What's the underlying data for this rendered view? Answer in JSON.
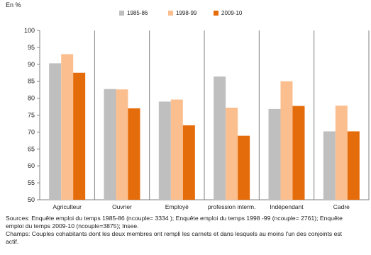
{
  "chart_data": {
    "type": "bar",
    "unit_label": "En %",
    "categories": [
      "Agriculteur",
      "Ouvrier",
      "Employé",
      "profession interm.",
      "Indépendant",
      "Cadre"
    ],
    "series": [
      {
        "name": "1985-86",
        "color": "#bfbfbf",
        "values": [
          90.3,
          82.7,
          79.0,
          86.4,
          76.8,
          70.2
        ]
      },
      {
        "name": "1998-99",
        "color": "#fbbf8f",
        "values": [
          93.0,
          82.6,
          79.6,
          77.2,
          85.0,
          77.8
        ]
      },
      {
        "name": "2009-10",
        "color": "#e46c0a",
        "values": [
          87.5,
          77.0,
          72.0,
          68.9,
          77.7,
          70.2
        ]
      }
    ],
    "ylim": [
      50,
      100
    ],
    "yticks": [
      50,
      55,
      60,
      65,
      70,
      75,
      80,
      85,
      90,
      95,
      100
    ],
    "grid": false,
    "legend_position": "top-center"
  },
  "notes": {
    "sources_line1": "Sources: Enquête emploi du temps 1985-86 (ncouple= 3334 ); Enquête emploi du temps 1998 -99 (ncouple= 2761); Enquête",
    "sources_line2": "emploi du temps 2009-10 (ncouple=3875); Insee.",
    "champs_line1": "Champs: Couples cohabitants dont les deux membres ont rempli les carnets et dans lesquels au moins l'un des conjoints est",
    "champs_line2": "actif."
  }
}
